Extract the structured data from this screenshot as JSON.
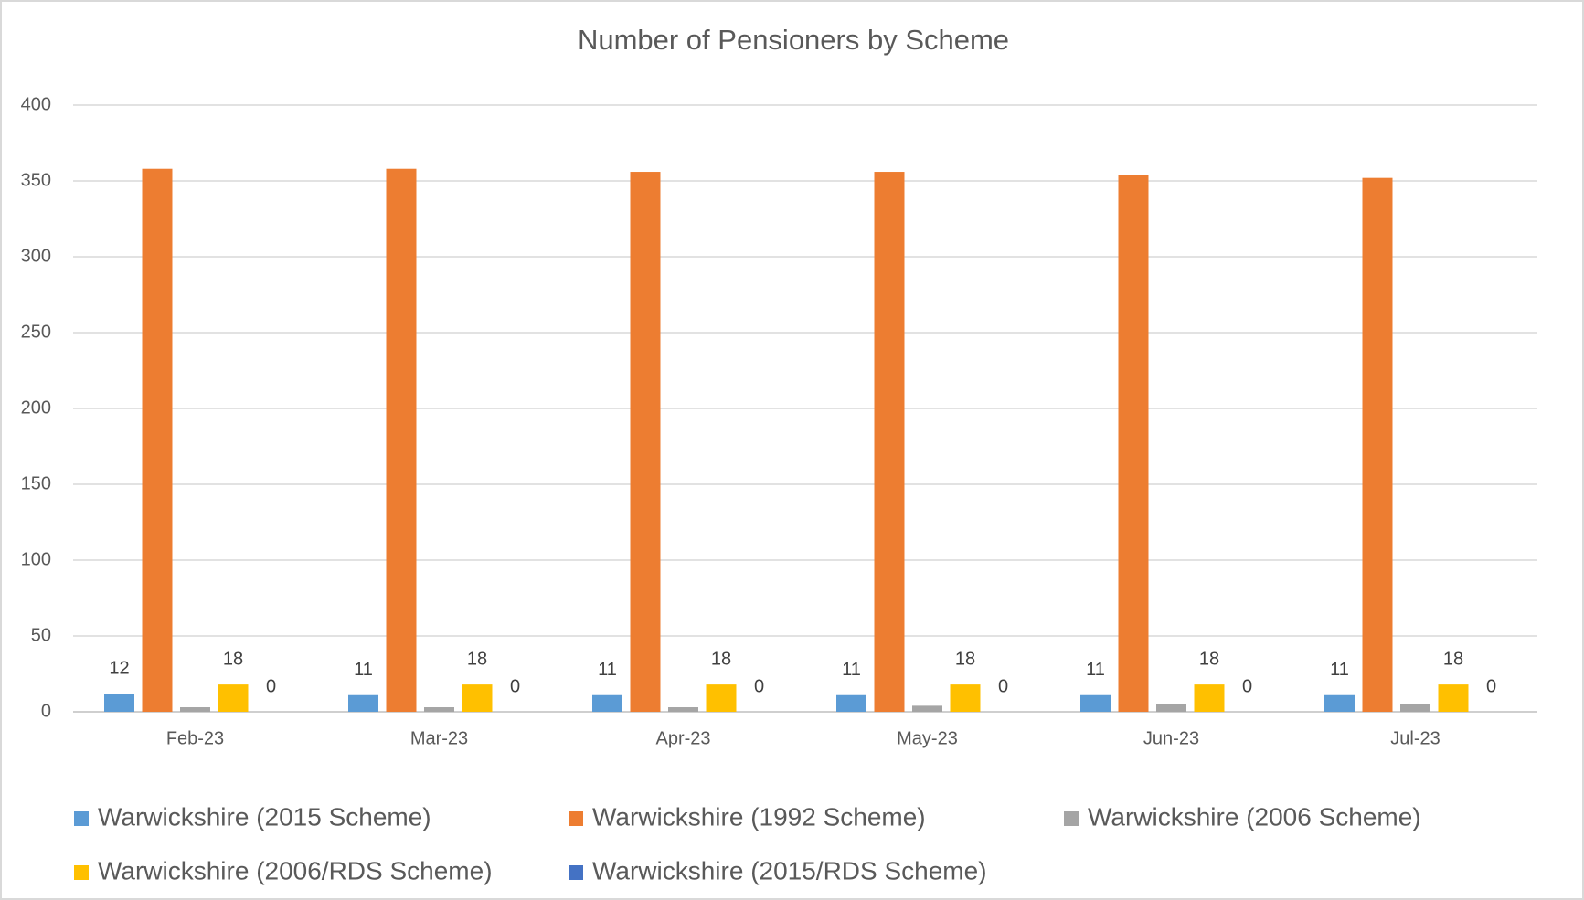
{
  "chart_data": {
    "type": "bar",
    "title": "Number of Pensioners by Scheme",
    "categories": [
      "Feb-23",
      "Mar-23",
      "Apr-23",
      "May-23",
      "Jun-23",
      "Jul-23"
    ],
    "series": [
      {
        "name": "Warwickshire (2015 Scheme)",
        "color": "#5b9bd5",
        "values": [
          12,
          11,
          11,
          11,
          11,
          11
        ],
        "data_labels": true
      },
      {
        "name": "Warwickshire (1992 Scheme)",
        "color": "#ed7d31",
        "values": [
          358,
          358,
          356,
          356,
          354,
          352
        ],
        "data_labels": false
      },
      {
        "name": "Warwickshire (2006 Scheme)",
        "color": "#a5a5a5",
        "values": [
          3,
          3,
          3,
          4,
          5,
          5
        ],
        "data_labels": false
      },
      {
        "name": "Warwickshire (2006/RDS Scheme)",
        "color": "#ffc000",
        "values": [
          18,
          18,
          18,
          18,
          18,
          18
        ],
        "data_labels": true
      },
      {
        "name": "Warwickshire (2015/RDS Scheme)",
        "color": "#4472c4",
        "values": [
          0,
          0,
          0,
          0,
          0,
          0
        ],
        "data_labels": true
      }
    ],
    "ylim": [
      0,
      400
    ],
    "yticks": [
      0,
      50,
      100,
      150,
      200,
      250,
      300,
      350,
      400
    ],
    "grid": true,
    "legend": "bottom"
  }
}
